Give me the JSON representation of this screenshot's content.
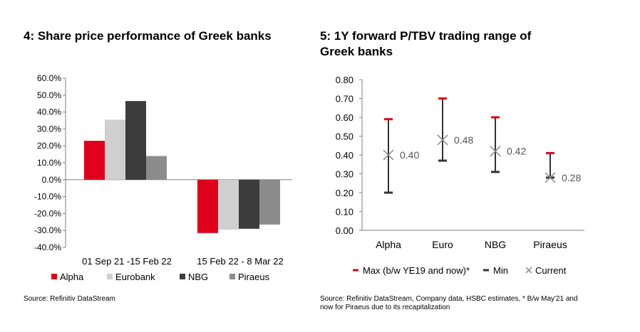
{
  "left": {
    "title": "4: Share price performance of Greek banks",
    "source": "Source: Refinitiv DataStream"
  },
  "right": {
    "title_line1": "5: 1Y forward P/TBV trading range of",
    "title_line2": "Greek banks",
    "source_line1": "Source: Refinitiv DataStream, Company data, HSBC estimates, * B/w May'21 and",
    "source_line2": "now for Piraeus due to its recapitalization"
  },
  "colors": {
    "alpha": "#e0001b",
    "eurobank": "#cfcfcf",
    "nbg": "#3c3c3c",
    "piraeus": "#8c8c8c",
    "max_marker": "#e0001b",
    "range_line": "#333333",
    "current_marker": "#8a8a8a"
  },
  "chart_data": [
    {
      "type": "bar",
      "categories": [
        "01 Sep 21 -15 Feb 22",
        "15 Feb 22 - 8 Mar 22"
      ],
      "series": [
        {
          "name": "Alpha",
          "values": [
            23.0,
            -31.5
          ]
        },
        {
          "name": "Eurobank",
          "values": [
            35.5,
            -29.5
          ]
        },
        {
          "name": "NBG",
          "values": [
            46.5,
            -29.0
          ]
        },
        {
          "name": "Piraeus",
          "values": [
            14.0,
            -26.5
          ]
        }
      ],
      "ylim": [
        -40,
        60
      ],
      "yticks": [
        "60.0%",
        "50.0%",
        "40.0%",
        "30.0%",
        "20.0%",
        "10.0%",
        "0.0%",
        "-10.0%",
        "-20.0%",
        "-30.0%",
        "-40.0%"
      ],
      "legend": [
        "Alpha",
        "Eurobank",
        "NBG",
        "Piraeus"
      ],
      "legend_position": "bottom",
      "grid": false
    },
    {
      "type": "range",
      "categories": [
        "Alpha",
        "Euro",
        "NBG",
        "Piraeus"
      ],
      "max": [
        0.59,
        0.7,
        0.6,
        0.41
      ],
      "min": [
        0.2,
        0.37,
        0.31,
        0.28
      ],
      "current": [
        0.4,
        0.48,
        0.42,
        0.28
      ],
      "current_labels": [
        "0.40",
        "0.48",
        "0.42",
        "0.28"
      ],
      "ylim": [
        0,
        0.8
      ],
      "yticks": [
        "0.80",
        "0.70",
        "0.60",
        "0.50",
        "0.40",
        "0.30",
        "0.20",
        "0.10",
        "0.00"
      ],
      "legend": [
        "Max (b/w YE19 and now)*",
        "Min",
        "Current"
      ],
      "legend_position": "bottom",
      "grid": false
    }
  ]
}
